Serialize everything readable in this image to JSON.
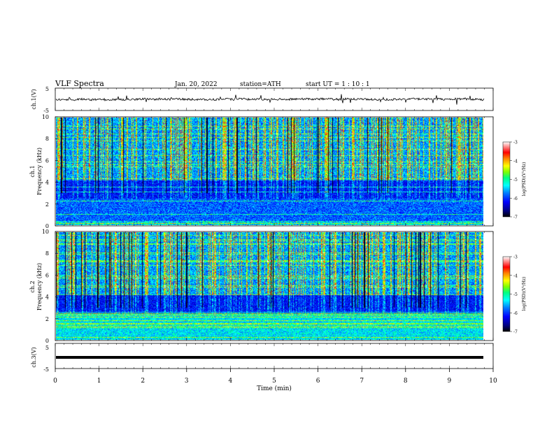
{
  "header": {
    "title": "VLF  Spectra",
    "date": "Jan. 20, 2022",
    "station": "station=ATH",
    "start_ut": "start  UT  =   1  : 10 : 1"
  },
  "panels": {
    "ch1_label": "ch.1(V)",
    "ch2_label": "ch.2",
    "ch3_label": "ch.1",
    "ch3v_label": "ch.3(V)",
    "freq_label": "Frequency  (kHz)",
    "colorbar_label": "log(PSD)(V²/Hz)",
    "xlabel": "Time  (min)"
  },
  "colors": {
    "scale": [
      "#000000",
      "#000080",
      "#0000ff",
      "#0080ff",
      "#00ffff",
      "#00ff80",
      "#80ff00",
      "#ffff00",
      "#ff8000",
      "#ff0000",
      "#ffffff"
    ]
  },
  "chart_data": [
    {
      "type": "line",
      "name": "ch.1(V) waveform",
      "ylabel": "ch.1(V)",
      "xlim": [
        0,
        10
      ],
      "ylim": [
        -5,
        5
      ],
      "yticks": [
        "5",
        "-5"
      ],
      "data_extent_min": 9.8,
      "baseline_value": 0
    },
    {
      "type": "heatmap",
      "name": "ch.1 spectrogram",
      "ylabel": "Frequency  (kHz)",
      "xlim": [
        0,
        10
      ],
      "ylim": [
        0,
        10
      ],
      "yticks": [
        "0",
        "2",
        "4",
        "6",
        "8",
        "10"
      ],
      "colorbar": {
        "label": "log(PSD)(V²/Hz)",
        "range": [
          -7,
          -3
        ],
        "ticks": [
          "-3",
          "-4",
          "-5",
          "-6",
          "-7"
        ]
      }
    },
    {
      "type": "heatmap",
      "name": "ch.2 spectrogram",
      "ylabel": "Frequency  (kHz)",
      "xlim": [
        0,
        10
      ],
      "ylim": [
        0,
        10
      ],
      "yticks": [
        "0",
        "2",
        "4",
        "6",
        "8",
        "10"
      ],
      "colorbar": {
        "label": "log(PSD)(V²/Hz)",
        "range": [
          -7,
          -3
        ],
        "ticks": [
          "-3",
          "-4",
          "-5",
          "-6",
          "-7"
        ]
      }
    },
    {
      "type": "line",
      "name": "ch.3(V) waveform",
      "ylabel": "ch.3(V)",
      "xlim": [
        0,
        10
      ],
      "ylim": [
        -5,
        5
      ],
      "yticks": [
        "5",
        "-5"
      ],
      "data_extent_min": 9.8,
      "baseline_value": 0
    }
  ],
  "xaxis": {
    "label": "Time  (min)",
    "ticks": [
      "0",
      "1",
      "2",
      "3",
      "4",
      "5",
      "6",
      "7",
      "8",
      "9",
      "10"
    ]
  }
}
